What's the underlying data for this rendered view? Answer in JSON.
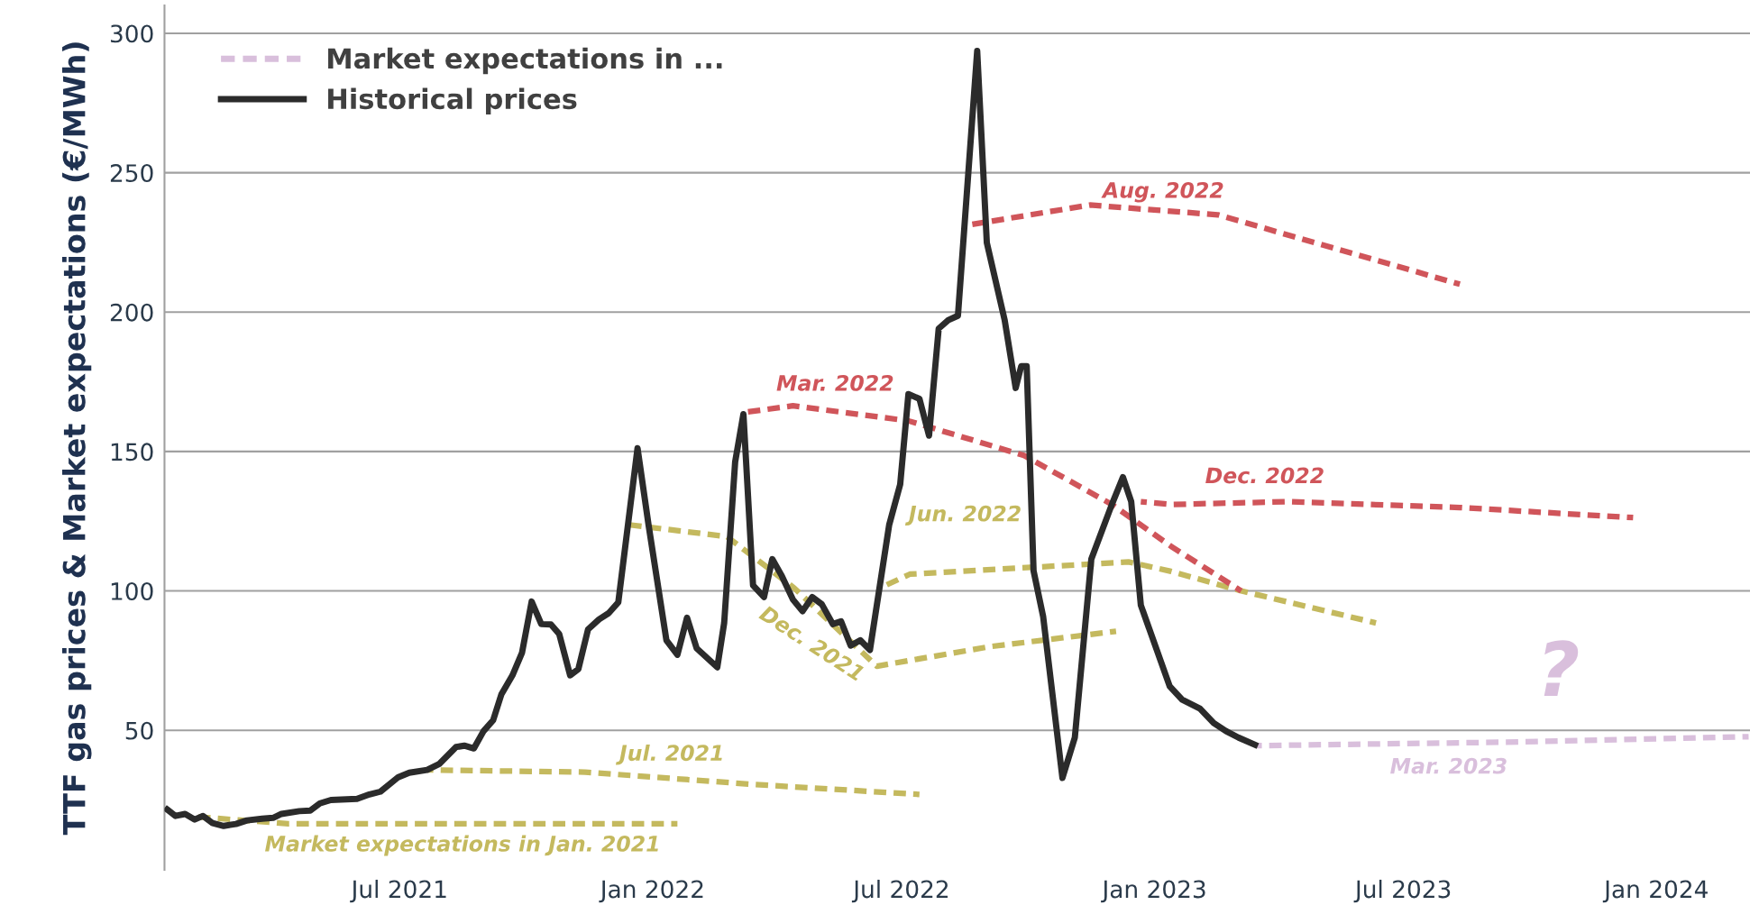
{
  "chart_data": {
    "type": "line",
    "ylabel": "TTF gas prices & Market expectations (€/MWh)",
    "xlim": [
      "2021-01-11",
      "2024-03-09"
    ],
    "ylim": [
      0,
      310
    ],
    "xticks": [
      {
        "value": "2021-07-01",
        "label": "Jul 2021"
      },
      {
        "value": "2022-01-01",
        "label": "Jan 2022"
      },
      {
        "value": "2022-07-01",
        "label": "Jul 2022"
      },
      {
        "value": "2023-01-01",
        "label": "Jan 2023"
      },
      {
        "value": "2023-07-01",
        "label": "Jul 2023"
      },
      {
        "value": "2024-01-01",
        "label": "Jan 2024"
      }
    ],
    "yticks": [
      50,
      100,
      150,
      200,
      250,
      300
    ],
    "grid": "y",
    "legend": "top left",
    "series": [
      {
        "color": "#c4b95e",
        "line_style": "dashed",
        "x": [
          "2021-02-02",
          "2021-04-11",
          "2022-01-19"
        ],
        "values": [
          19,
          16.5,
          16.5
        ]
      },
      {
        "color": "#c4b95e",
        "line_style": "dashed",
        "x": [
          "2021-07-21",
          "2021-11-13",
          "2022-03-15",
          "2022-07-14"
        ],
        "values": [
          35.8,
          35,
          30.6,
          27
        ]
      },
      {
        "color": "#c4b95e",
        "line_style": "dashed",
        "x": [
          "2021-12-15",
          "2022-02-24",
          "2022-04-14",
          "2022-06-13",
          "2022-09-03",
          "2022-12-04"
        ],
        "values": [
          123.7,
          119.5,
          101,
          73,
          80,
          85.5
        ]
      },
      {
        "color": "#c4b95e",
        "line_style": "dashed",
        "x": [
          "2022-06-15",
          "2022-07-07",
          "2022-12-13",
          "2023-01-13",
          "2023-03-05",
          "2023-06-11"
        ],
        "values": [
          101,
          106,
          110.4,
          107,
          100,
          88.5
        ]
      },
      {
        "color": "#d0555a",
        "line_style": "dashed",
        "x": [
          "2022-03-08",
          "2022-04-13",
          "2022-07-06",
          "2022-09-28",
          "2022-12-01",
          "2023-01-13",
          "2023-03-05"
        ],
        "values": [
          164,
          166.4,
          161,
          148.6,
          131,
          116,
          100
        ]
      },
      {
        "color": "#d0555a",
        "line_style": "dashed",
        "x": [
          "2022-08-19",
          "2022-11-15",
          "2023-02-16",
          "2023-08-11"
        ],
        "values": [
          231.3,
          238.4,
          234.9,
          210
        ]
      },
      {
        "color": "#d0555a",
        "line_style": "dashed",
        "x": [
          "2022-12-22",
          "2023-01-13",
          "2023-04-08",
          "2023-08-11",
          "2023-12-15"
        ],
        "values": [
          132,
          131,
          132,
          129.9,
          126.3
        ]
      },
      {
        "name": "Market expectations in ...",
        "color": "#d9bfdc",
        "line_style": "dashed",
        "x": [
          "2023-03-16",
          "2023-09-22",
          "2024-03-08"
        ],
        "values": [
          44.5,
          45.8,
          47.7
        ]
      },
      {
        "name": "Historical prices",
        "color": "#2b2b2b",
        "line_style": "solid",
        "x": [
          "2021-01-13",
          "2021-01-19",
          "2021-01-26",
          "2021-02-02",
          "2021-02-08",
          "2021-02-15",
          "2021-02-23",
          "2021-03-04",
          "2021-03-12",
          "2021-03-23",
          "2021-03-31",
          "2021-04-06",
          "2021-04-19",
          "2021-04-27",
          "2021-05-04",
          "2021-05-12",
          "2021-05-31",
          "2021-06-09",
          "2021-06-17",
          "2021-06-30",
          "2021-07-08",
          "2021-07-21",
          "2021-07-30",
          "2021-08-11",
          "2021-08-17",
          "2021-08-24",
          "2021-08-31",
          "2021-09-07",
          "2021-09-13",
          "2021-09-21",
          "2021-09-28",
          "2021-10-05",
          "2021-10-12",
          "2021-10-19",
          "2021-10-25",
          "2021-11-02",
          "2021-11-08",
          "2021-11-15",
          "2021-11-23",
          "2021-11-30",
          "2021-12-07",
          "2021-12-21",
          "2021-12-29",
          "2022-01-11",
          "2022-01-19",
          "2022-01-26",
          "2022-02-02",
          "2022-02-17",
          "2022-02-22",
          "2022-03-02",
          "2022-03-08",
          "2022-03-15",
          "2022-03-23",
          "2022-03-29",
          "2022-04-05",
          "2022-04-13",
          "2022-04-20",
          "2022-04-27",
          "2022-05-04",
          "2022-05-12",
          "2022-05-18",
          "2022-05-25",
          "2022-06-01",
          "2022-06-08",
          "2022-06-22",
          "2022-06-30",
          "2022-07-06",
          "2022-07-14",
          "2022-07-21",
          "2022-07-28",
          "2022-08-04",
          "2022-08-11",
          "2022-08-25",
          "2022-09-01",
          "2022-09-14",
          "2022-09-22",
          "2022-09-26",
          "2022-09-30",
          "2022-10-05",
          "2022-10-12",
          "2022-10-26",
          "2022-11-04",
          "2022-11-16",
          "2022-12-01",
          "2022-12-09",
          "2022-12-15",
          "2022-12-22",
          "2023-01-12",
          "2023-01-21",
          "2023-02-03",
          "2023-02-13",
          "2023-02-22",
          "2023-03-03",
          "2023-03-15"
        ],
        "values": [
          21.6,
          19.3,
          20,
          18,
          19.3,
          16.7,
          15.7,
          16.4,
          17.7,
          18.3,
          18.6,
          20,
          21,
          21.2,
          23.8,
          25,
          25.4,
          27,
          28,
          33.2,
          34.8,
          35.8,
          38,
          44,
          44.5,
          43.5,
          49.7,
          53.6,
          62.9,
          69.7,
          77.8,
          96.2,
          88.1,
          88,
          84.6,
          69.7,
          72,
          86.2,
          89.8,
          92,
          95.9,
          151.2,
          123.7,
          82.3,
          77.1,
          90.4,
          79.4,
          72.6,
          88.5,
          146.3,
          163.4,
          102,
          97.8,
          111.4,
          105.3,
          96.9,
          92.7,
          97.8,
          95.2,
          88.1,
          89.1,
          80.4,
          82.3,
          78.8,
          123.7,
          138.2,
          170.6,
          168.9,
          155.7,
          194.1,
          197.1,
          198.7,
          293.7,
          224.9,
          197.1,
          172.8,
          180.6,
          180.6,
          107.2,
          90.7,
          32.9,
          47.4,
          111.4,
          131.1,
          140.8,
          132.1,
          94.9,
          65.8,
          61,
          57.8,
          52.6,
          49.7,
          47.4,
          44.8
        ]
      }
    ],
    "annotations": [
      "Market expectations in Jan. 2021",
      "Jul. 2021",
      "Dec. 2021",
      "Jun. 2022",
      "Mar. 2022",
      "Aug. 2022",
      "Dec. 2022",
      "Mar. 2023",
      "?"
    ]
  }
}
